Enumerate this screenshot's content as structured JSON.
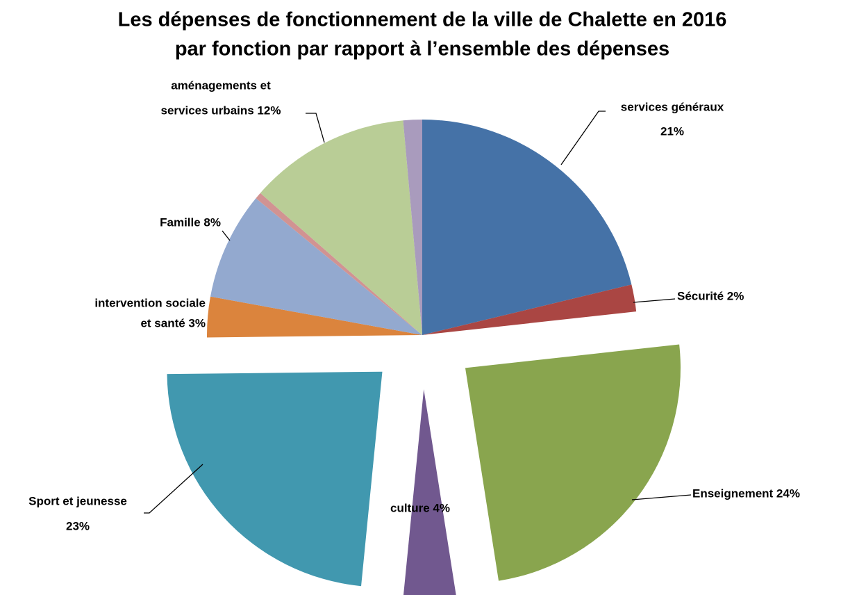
{
  "chart_data": {
    "type": "pie",
    "title": [
      "Les dépenses de fonctionnement de la ville de Chalette en 2016",
      "par fonction par rapport à l’ensemble des dépenses"
    ],
    "labels": [
      [
        "services généraux",
        "21%"
      ],
      [
        "Sécurité 2%"
      ],
      [
        "Enseignement 24%"
      ],
      [
        "culture 4%"
      ],
      [
        "Sport et jeunesse",
        "23%"
      ],
      [
        "intervention sociale",
        "et santé 3%"
      ],
      [
        "Famille  8%"
      ],
      null,
      [
        "aménagements et",
        "services urbains  12%"
      ],
      null
    ],
    "values": [
      21,
      2,
      24,
      4,
      23,
      3,
      8,
      0.5,
      12,
      1.4
    ],
    "colors": [
      "#4572a7",
      "#aa4643",
      "#89a54e",
      "#71588f",
      "#4198af",
      "#db843d",
      "#93a9cf",
      "#d19392",
      "#b9cd96",
      "#a99bbd"
    ],
    "explode": [
      false,
      false,
      true,
      true,
      true,
      false,
      false,
      false,
      false,
      false
    ]
  }
}
